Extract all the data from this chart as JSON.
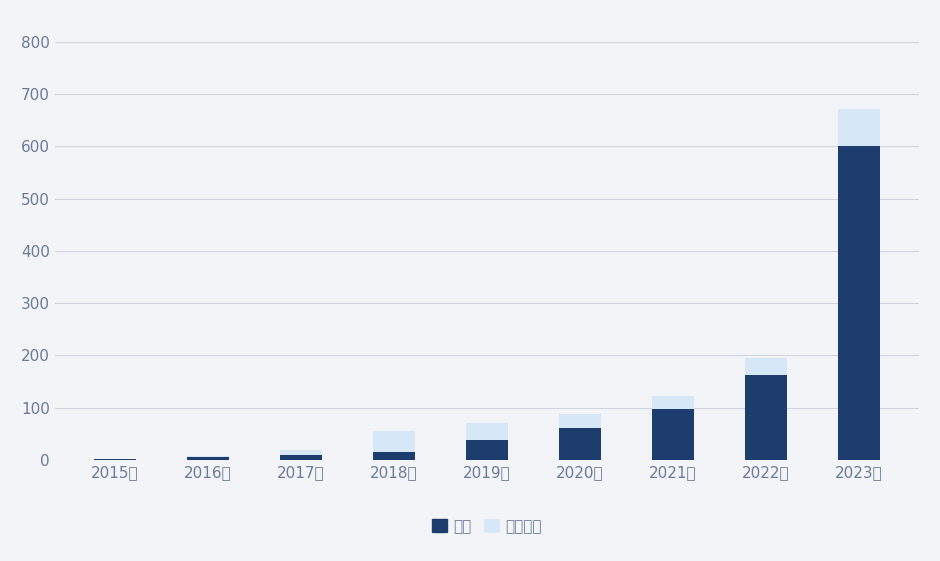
{
  "categories": [
    "2015年",
    "2016年",
    "2017年",
    "2018年",
    "2019年",
    "2020年",
    "2021年",
    "2022年",
    "2023年"
  ],
  "certified": [
    1,
    5,
    10,
    15,
    38,
    62,
    97,
    163,
    600
  ],
  "committed": [
    2,
    7,
    20,
    55,
    70,
    88,
    123,
    195,
    672
  ],
  "color_certified": "#1c3d6e",
  "color_committed": "#d6e8f7",
  "background_color": "#f2f4f8",
  "grid_color": "#d0d4de",
  "yticks": [
    0,
    100,
    200,
    300,
    400,
    500,
    600,
    700,
    800
  ],
  "ylim": [
    0,
    840
  ],
  "legend_certified": "認定",
  "legend_committed": "コミット",
  "tick_color": "#6b7a99",
  "bar_width": 0.45
}
